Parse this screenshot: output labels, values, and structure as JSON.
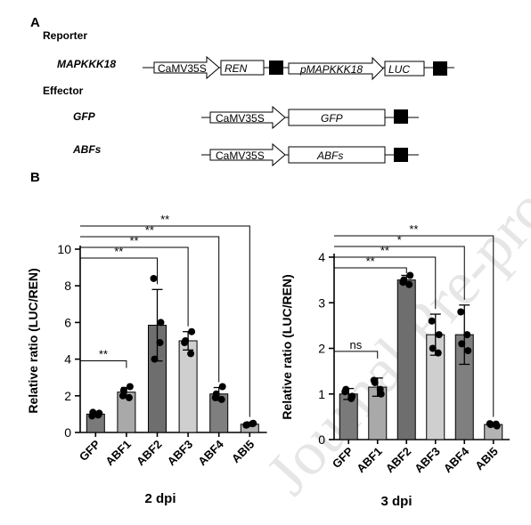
{
  "panel_a": {
    "label": "A",
    "reporter_title": "Reporter",
    "effector_title": "Effector",
    "reporter": {
      "name": "MAPKKK18",
      "promoter1": "CaMV35S",
      "gene1": "REN",
      "promoter2": "pMAPKKK18",
      "gene2": "LUC"
    },
    "effector_gfp": {
      "name": "GFP",
      "promoter": "CaMV35S",
      "gene": "GFP"
    },
    "effector_abfs": {
      "name": "ABFs",
      "promoter": "CaMV35S",
      "gene": "ABFs"
    }
  },
  "panel_b": {
    "label": "B"
  },
  "watermark": "Journal Pre-proof",
  "chart_data": [
    {
      "type": "bar",
      "title": "2 dpi",
      "ylabel": "Relative ratio (LUC/REN)",
      "ylim": [
        0,
        10
      ],
      "yticks": [
        "0",
        "2",
        "4",
        "6",
        "8",
        "10"
      ],
      "categories": [
        "GFP",
        "ABF1",
        "ABF2",
        "ABF3",
        "ABF4",
        "ABI5"
      ],
      "bar_colors": [
        "#7a7a7a",
        "#a9a9a9",
        "#6e6e6e",
        "#cfcfcf",
        "#7f7f7f",
        "#b3b3b3"
      ],
      "values": [
        1.0,
        2.2,
        5.85,
        5.0,
        2.1,
        0.45
      ],
      "errors": [
        0.1,
        0.25,
        1.95,
        0.5,
        0.35,
        0.1
      ],
      "points": [
        [
          0.9,
          1.05,
          1.1,
          0.95
        ],
        [
          2.0,
          2.5,
          2.3,
          1.9
        ],
        [
          8.4,
          6.0,
          4.0,
          4.9
        ],
        [
          4.9,
          5.5,
          5.0,
          4.3
        ],
        [
          1.9,
          2.5,
          2.1,
          1.8
        ],
        [
          0.4,
          0.5,
          0.42,
          0.48
        ]
      ],
      "comparisons": [
        {
          "to": "ABF1",
          "label": "**"
        },
        {
          "to": "ABF2",
          "label": "**"
        },
        {
          "to": "ABF3",
          "label": "**"
        },
        {
          "to": "ABF4",
          "label": "**"
        },
        {
          "to": "ABI5",
          "label": "**"
        }
      ]
    },
    {
      "type": "bar",
      "title": "3 dpi",
      "ylabel": "Relative ratio (LUC/REN)",
      "ylim": [
        0,
        4
      ],
      "yticks": [
        "0",
        "1",
        "2",
        "3",
        "4"
      ],
      "categories": [
        "GFP",
        "ABF1",
        "ABF2",
        "ABF3",
        "ABF4",
        "ABI5"
      ],
      "bar_colors": [
        "#7a7a7a",
        "#a9a9a9",
        "#6e6e6e",
        "#cfcfcf",
        "#7f7f7f",
        "#b3b3b3"
      ],
      "values": [
        1.0,
        1.15,
        3.5,
        2.3,
        2.3,
        0.33
      ],
      "errors": [
        0.12,
        0.2,
        0.1,
        0.45,
        0.65,
        0.05
      ],
      "points": [
        [
          1.05,
          0.95,
          1.1,
          0.9
        ],
        [
          1.3,
          1.0,
          1.25,
          1.1
        ],
        [
          3.45,
          3.6,
          3.5,
          3.4
        ],
        [
          2.6,
          2.3,
          2.0,
          1.9
        ],
        [
          2.8,
          1.95,
          2.1,
          2.3
        ],
        [
          0.35,
          0.3,
          0.33,
          0.34
        ]
      ],
      "comparisons": [
        {
          "to": "ABF1",
          "label": "ns"
        },
        {
          "to": "ABF2",
          "label": "**"
        },
        {
          "to": "ABF3",
          "label": "**"
        },
        {
          "to": "ABF4",
          "label": "*"
        },
        {
          "to": "ABI5",
          "label": "**"
        }
      ]
    }
  ]
}
